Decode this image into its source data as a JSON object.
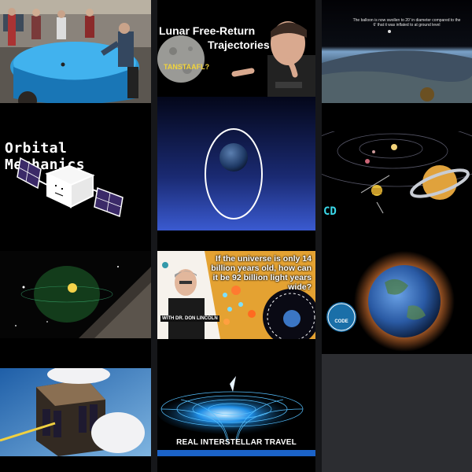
{
  "tiles": {
    "lunar": {
      "title_line1": "Lunar Free-Return",
      "title_line2": "Trajectories",
      "moon_label": "TANSTAAFL?"
    },
    "balloon": {
      "caption": "The balloon is now swollen to 20' in diameter compared to the 6' that it was inflated to at ground level"
    },
    "orbital": {
      "title": "Orbital Mechanics"
    },
    "solar": {
      "code_text": "CD"
    },
    "universe": {
      "question": "If the universe is only 14 billion years old, how can it be 92 billion light years wide?",
      "host": "WITH DR. DON LINCOLN"
    },
    "earth_debris": {
      "code_badge": "CODE"
    },
    "interstellar": {
      "caption": "REAL INTERSTELLAR TRAVEL"
    }
  },
  "colors": {
    "background": "#000000",
    "gutter": "#16171a",
    "empty_cell": "#2c2d31"
  }
}
